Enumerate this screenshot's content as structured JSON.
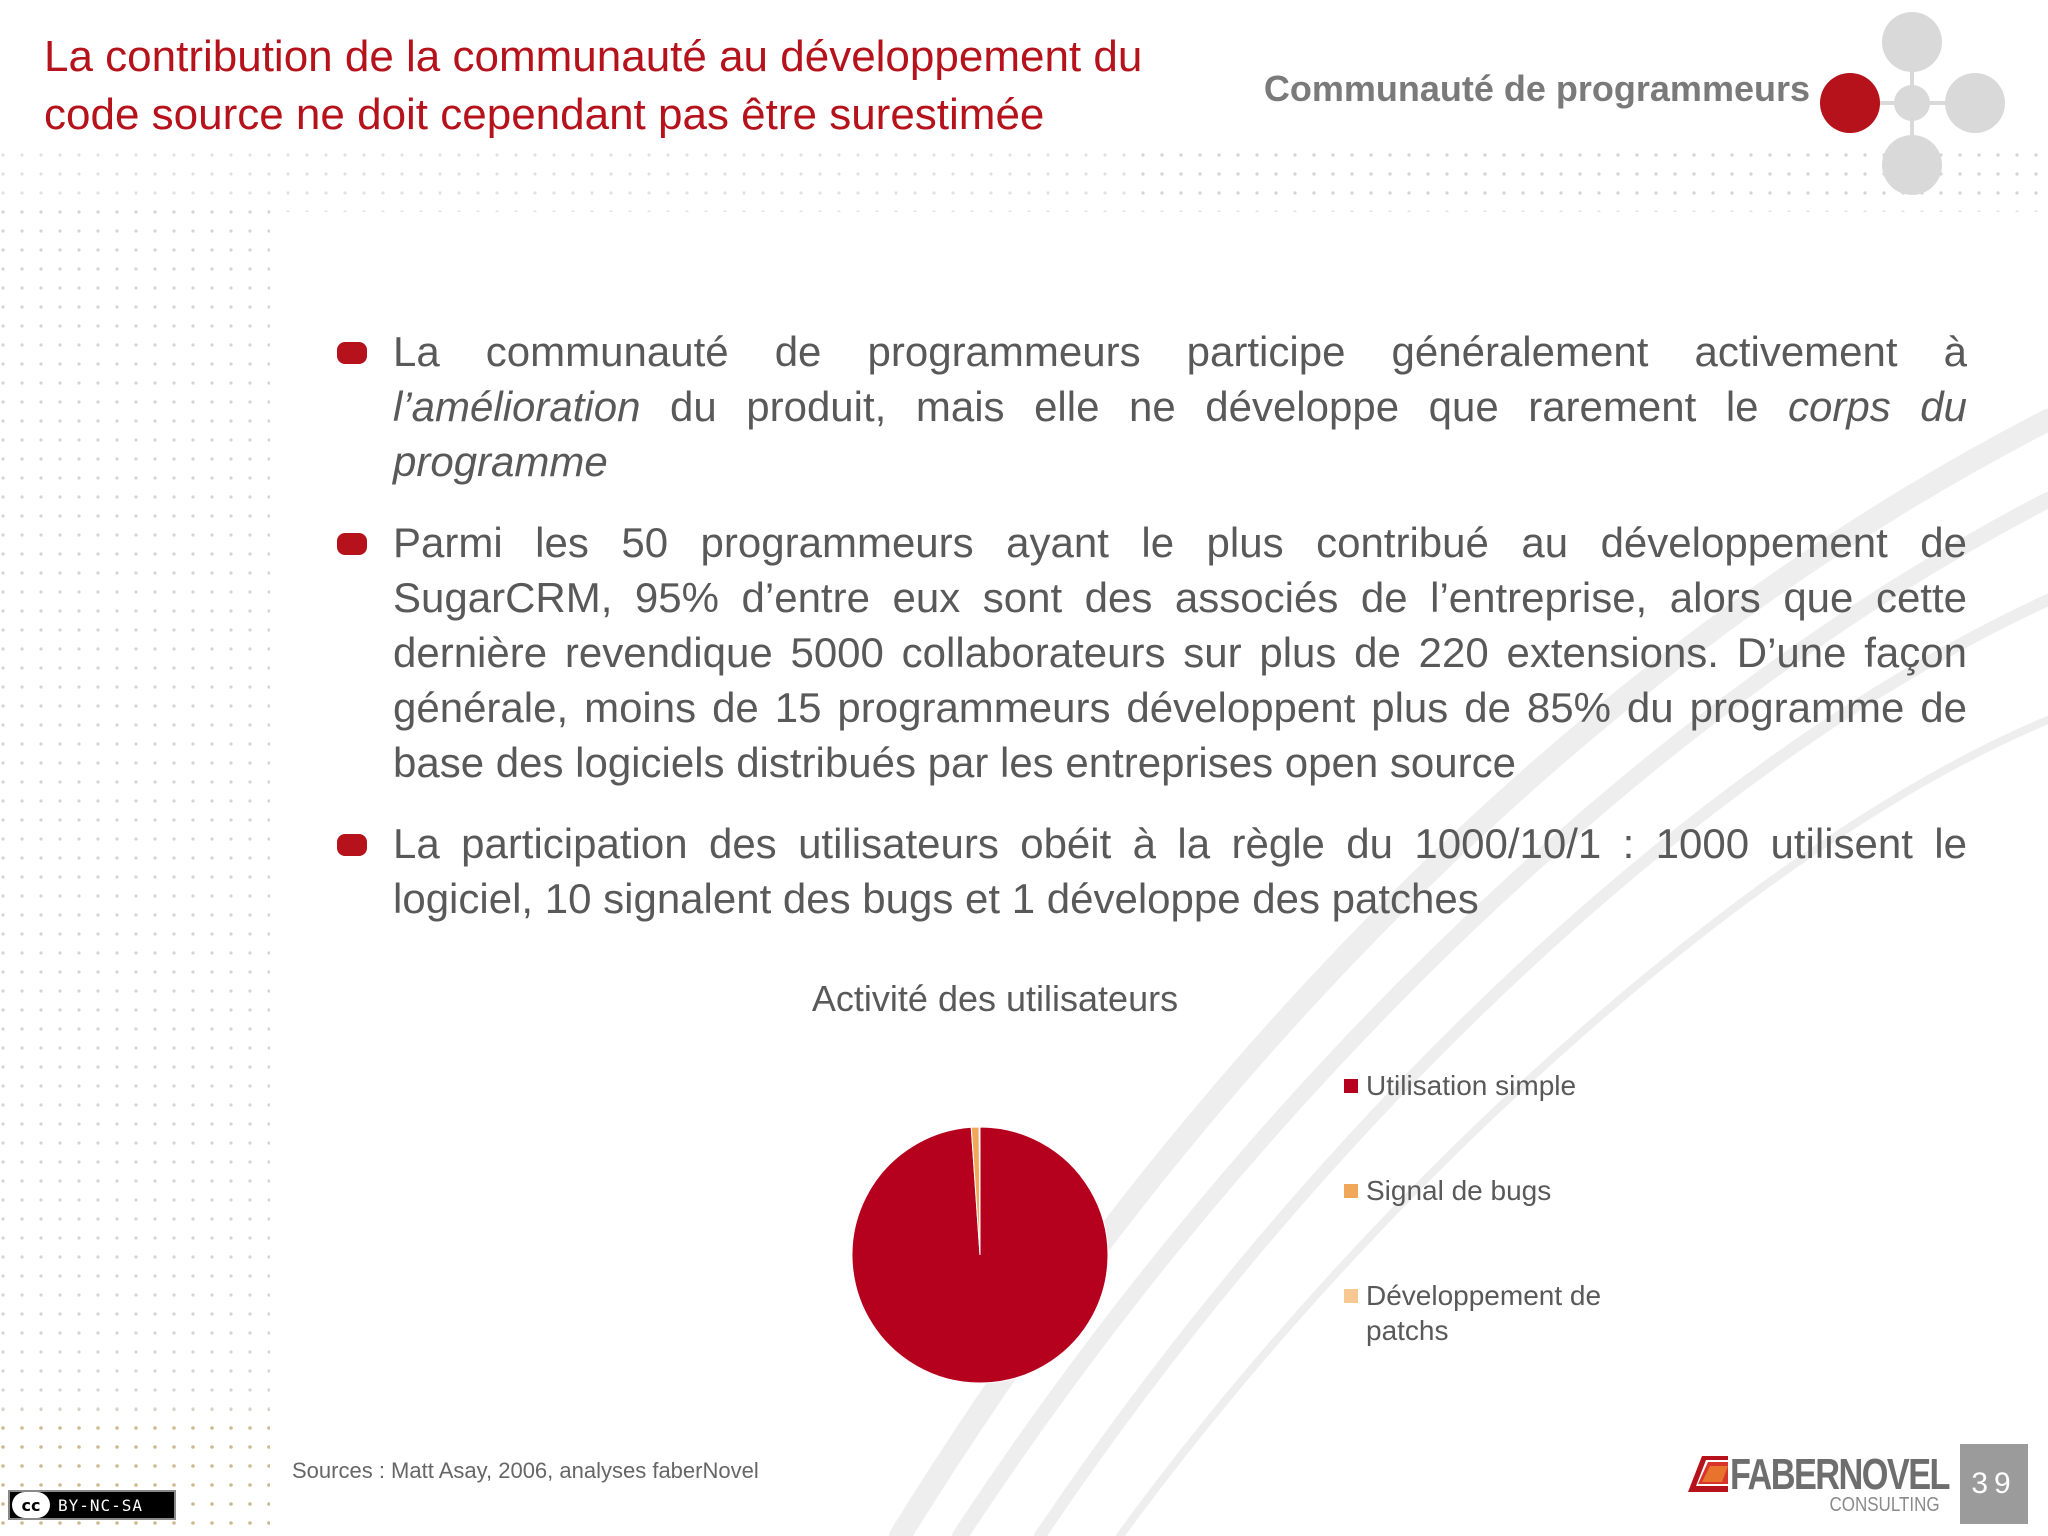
{
  "title": "La contribution de la communauté au développement du code source ne doit cependant pas être surestimée",
  "section_label": "Communauté de programmeurs",
  "colors": {
    "accent": "#b5121b",
    "text_gray": "#595959",
    "logo_gray": "#6e6e6e",
    "page_box": "#9b9b9b",
    "bubble_gray": "#d9d9d9"
  },
  "bullets": [
    {
      "parts": [
        {
          "text": "La communauté de programmeurs participe généralement activement à ",
          "italic": false
        },
        {
          "text": "l’amélioration",
          "italic": true
        },
        {
          "text": " du produit, mais elle ne développe que rarement le ",
          "italic": false
        },
        {
          "text": "corps du programme",
          "italic": true
        }
      ]
    },
    {
      "parts": [
        {
          "text": "Parmi les 50 programmeurs ayant le plus contribué au développement de SugarCRM, 95% d’entre eux sont des associés de l’entreprise, alors que cette dernière revendique 5000 collaborateurs sur plus de 220 extensions. D’une façon générale, moins de 15 programmeurs développent plus de 85% du programme de base des logiciels distribués par les entreprises open source",
          "italic": false
        }
      ]
    },
    {
      "parts": [
        {
          "text": "La participation des utilisateurs obéit à la règle du 1000/10/1 : 1000 utilisent le logiciel, 10 signalent des bugs et 1 développe des patches",
          "italic": false
        }
      ]
    }
  ],
  "chart_data": {
    "type": "pie",
    "title": "Activité des utilisateurs",
    "categories": [
      "Utilisation simple",
      "Signal de bugs",
      "Développement de patchs"
    ],
    "values": [
      1000,
      10,
      1
    ],
    "colors": [
      "#b5001e",
      "#f0a75a",
      "#f6c993"
    ],
    "legend": "right"
  },
  "sources": "Sources : Matt Asay, 2006, analyses faberNovel",
  "license": {
    "circle": "cc",
    "text": "BY-NC-SA"
  },
  "logo": {
    "name": "FABERNOVEL",
    "sub": "CONSULTING"
  },
  "page_number": "39"
}
